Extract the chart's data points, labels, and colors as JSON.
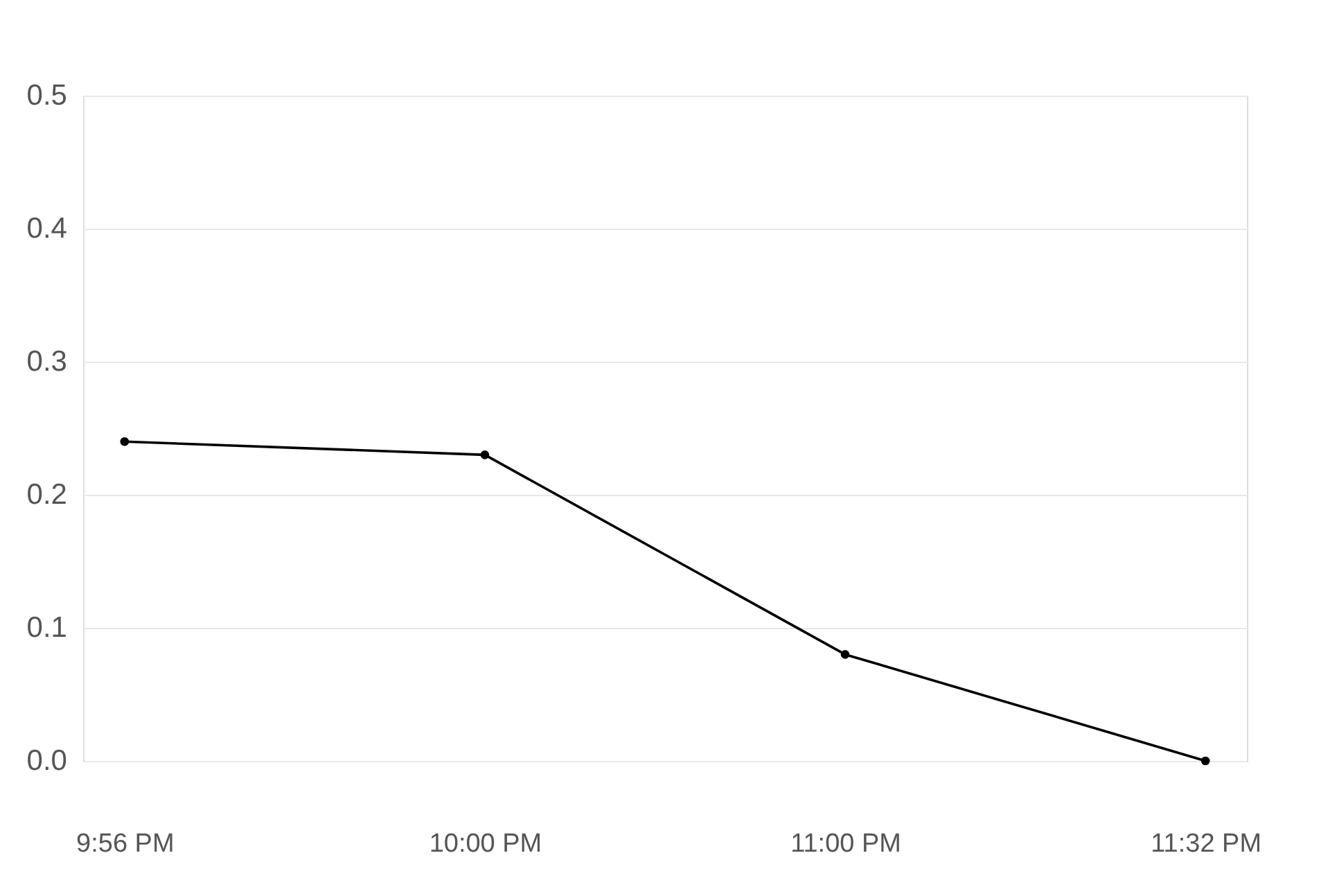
{
  "chart_data": {
    "type": "line",
    "categories": [
      "9:56 PM",
      "10:00 PM",
      "11:00 PM",
      "11:32 PM"
    ],
    "series": [
      {
        "color": "#000000",
        "values": [
          0.24,
          0.23,
          0.08,
          0.0
        ]
      }
    ],
    "ylim": [
      0,
      0.5
    ],
    "yticks": [
      {
        "value": 0,
        "label": "0.0"
      },
      0.1,
      0.2,
      0.3,
      0.4,
      0.5
    ],
    "grid": "y",
    "marker": "circle",
    "line_style": "solid"
  }
}
